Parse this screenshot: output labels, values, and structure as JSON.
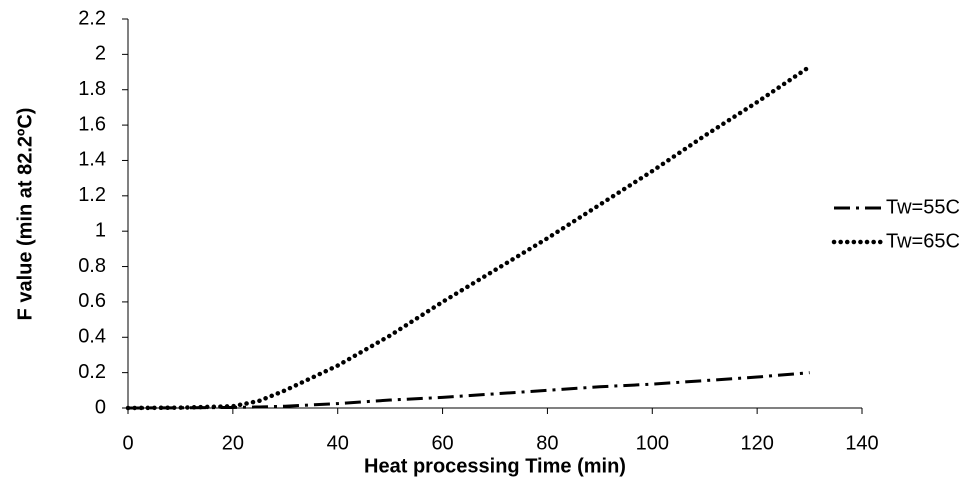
{
  "chart_data": {
    "type": "line",
    "xlabel": "Heat processing Time (min)",
    "ylabel": "F value (min at 82.2ºC)",
    "x": [
      0,
      10,
      20,
      25,
      30,
      40,
      50,
      60,
      70,
      80,
      90,
      100,
      110,
      120,
      130
    ],
    "series": [
      {
        "name": "Tw=55C",
        "color": "#000000",
        "style": "dashdot",
        "values": [
          0,
          0.001,
          0.003,
          0.006,
          0.01,
          0.025,
          0.045,
          0.06,
          0.08,
          0.1,
          0.12,
          0.135,
          0.155,
          0.175,
          0.2
        ]
      },
      {
        "name": "Tw=65C",
        "color": "#000000",
        "style": "dotted",
        "values": [
          0,
          0.002,
          0.01,
          0.04,
          0.1,
          0.24,
          0.41,
          0.6,
          0.78,
          0.96,
          1.15,
          1.34,
          1.54,
          1.73,
          1.93
        ]
      }
    ],
    "xlim": [
      0,
      140
    ],
    "xticks": [
      0,
      20,
      40,
      60,
      80,
      100,
      120,
      140
    ],
    "ylim": [
      0,
      2.2
    ],
    "yticks": [
      0,
      0.2,
      0.4,
      0.6,
      0.8,
      1,
      1.2,
      1.4,
      1.6,
      1.8,
      2,
      2.2
    ],
    "grid": false,
    "legend": "right"
  }
}
